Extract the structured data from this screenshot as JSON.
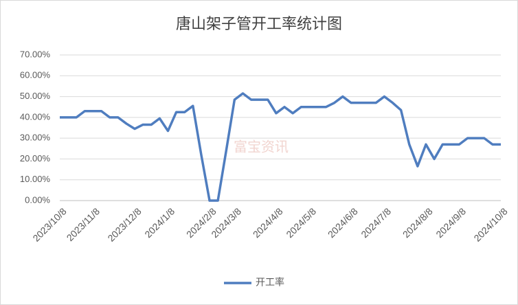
{
  "chart_data": {
    "type": "line",
    "title": "唐山架子管开工率统计图",
    "watermark": "富宝资讯",
    "categories": [
      "2023/10/8",
      null,
      null,
      null,
      "2023/11/8",
      null,
      null,
      null,
      null,
      "2023/12/8",
      null,
      null,
      null,
      "2024/1/8",
      null,
      null,
      null,
      null,
      "2024/2/8",
      null,
      null,
      "2024/3/8",
      null,
      null,
      null,
      null,
      "2024/4/8",
      null,
      null,
      null,
      "2024/5/8",
      null,
      null,
      null,
      null,
      "2024/6/8",
      null,
      null,
      null,
      "2024/7/8",
      null,
      null,
      null,
      null,
      "2024/8/8",
      null,
      null,
      null,
      "2024/9/8",
      null,
      null,
      null,
      null,
      "2024/10/8"
    ],
    "series": [
      {
        "name": "开工率",
        "color": "#4f7dbf",
        "values": [
          40,
          40,
          40,
          43,
          43,
          43,
          40,
          40,
          37,
          34.5,
          36.5,
          36.5,
          39.5,
          33.5,
          42.5,
          42.5,
          45.5,
          22,
          0,
          0,
          24,
          48.5,
          51.5,
          48.5,
          48.5,
          48.5,
          42,
          45,
          42,
          45,
          45,
          45,
          45,
          47,
          50,
          47,
          47,
          47,
          47,
          50,
          47,
          43.5,
          27,
          16.5,
          27,
          20,
          27,
          27,
          27,
          30,
          30,
          30,
          27,
          27
        ]
      }
    ],
    "ylim": [
      0,
      70
    ],
    "yticks": [
      {
        "value": 0,
        "label": "0.00%"
      },
      {
        "value": 10,
        "label": "10.00%"
      },
      {
        "value": 20,
        "label": "20.00%"
      },
      {
        "value": 30,
        "label": "30.00%"
      },
      {
        "value": 40,
        "label": "40.00%"
      },
      {
        "value": 50,
        "label": "50.00%"
      },
      {
        "value": 60,
        "label": "60.00%"
      },
      {
        "value": 70,
        "label": "70.00%"
      }
    ],
    "grid": true,
    "legend": "bottom"
  }
}
